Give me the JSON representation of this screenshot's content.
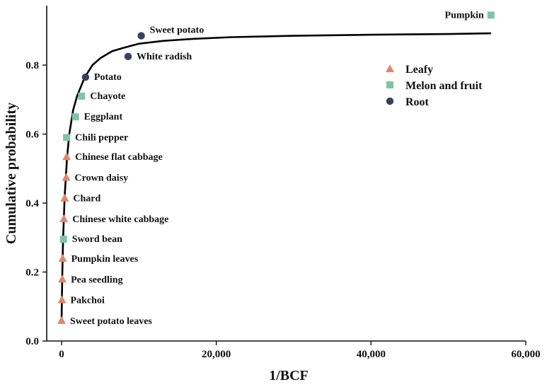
{
  "chart_data": {
    "type": "scatter",
    "xlabel": "1/BCF",
    "ylabel": "Cumulative probability",
    "xlim": [
      -2000,
      60000
    ],
    "ylim": [
      0,
      1.0
    ],
    "xticks": [
      0,
      20000,
      40000,
      60000
    ],
    "xtick_labels": [
      "0",
      "20,000",
      "40,000",
      "60,000"
    ],
    "yticks": [
      0.0,
      0.2,
      0.4,
      0.6,
      0.8
    ],
    "ytick_labels": [
      "0.0",
      "0.2",
      "0.4",
      "0.6",
      "0.8"
    ],
    "grid": false,
    "legend_position": "top-right",
    "colors": {
      "Leafy": "#e0876a",
      "Melon and fruit": "#7fc4a3",
      "Root": "#38415f",
      "curve": "#000000"
    },
    "series": [
      {
        "name": "Leafy",
        "marker": "triangle",
        "points": [
          {
            "label": "Sweet potato leaves",
            "x": 0,
            "y": 0.06
          },
          {
            "label": "Pakchoi",
            "x": 50,
            "y": 0.12
          },
          {
            "label": "Pea seedling",
            "x": 100,
            "y": 0.18
          },
          {
            "label": "Pumpkin leaves",
            "x": 150,
            "y": 0.24
          },
          {
            "label": "Chinese white cabbage",
            "x": 300,
            "y": 0.355
          },
          {
            "label": "Chard",
            "x": 400,
            "y": 0.415
          },
          {
            "label": "Crown daisy",
            "x": 600,
            "y": 0.475
          },
          {
            "label": "Chinese flat cabbage",
            "x": 650,
            "y": 0.535
          }
        ]
      },
      {
        "name": "Melon and fruit",
        "marker": "square",
        "points": [
          {
            "label": "Sword bean",
            "x": 250,
            "y": 0.295
          },
          {
            "label": "Chili pepper",
            "x": 650,
            "y": 0.59
          },
          {
            "label": "Eggplant",
            "x": 1800,
            "y": 0.65
          },
          {
            "label": "Chayote",
            "x": 2600,
            "y": 0.71
          },
          {
            "label": "Pumpkin",
            "x": 55500,
            "y": 0.945
          }
        ]
      },
      {
        "name": "Root",
        "marker": "circle",
        "points": [
          {
            "label": "Potato",
            "x": 3100,
            "y": 0.765
          },
          {
            "label": "White radish",
            "x": 8600,
            "y": 0.825
          },
          {
            "label": "Sweet potato",
            "x": 10300,
            "y": 0.885
          }
        ]
      }
    ],
    "fit_curve": [
      [
        0,
        0.06
      ],
      [
        100,
        0.2
      ],
      [
        200,
        0.3
      ],
      [
        400,
        0.42
      ],
      [
        700,
        0.53
      ],
      [
        1000,
        0.6
      ],
      [
        1500,
        0.67
      ],
      [
        2000,
        0.71
      ],
      [
        3000,
        0.765
      ],
      [
        4000,
        0.8
      ],
      [
        5000,
        0.82
      ],
      [
        6500,
        0.84
      ],
      [
        8000,
        0.85
      ],
      [
        10000,
        0.862
      ],
      [
        13000,
        0.87
      ],
      [
        17000,
        0.876
      ],
      [
        22000,
        0.881
      ],
      [
        30000,
        0.885
      ],
      [
        40000,
        0.888
      ],
      [
        50000,
        0.89
      ],
      [
        55500,
        0.892
      ]
    ]
  }
}
